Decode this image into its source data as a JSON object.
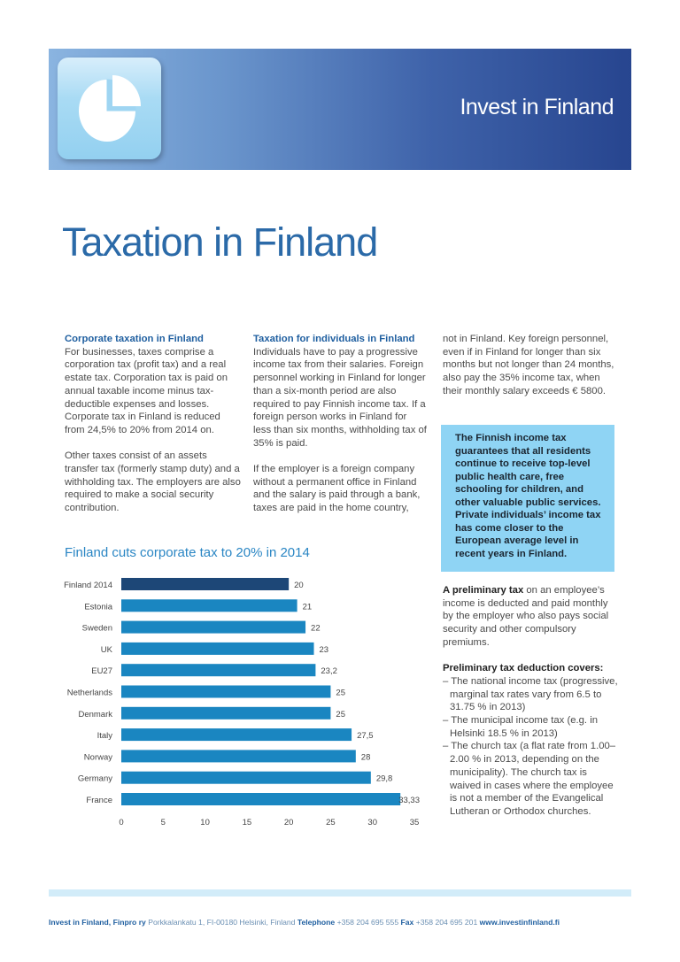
{
  "header": {
    "brand": "Invest in Finland",
    "icon": "pie-chart-icon"
  },
  "title": "Taxation in Finland",
  "col1": {
    "heading": "Corporate taxation in Finland",
    "p1": "For businesses, taxes comprise a corporation tax (profit tax) and a real estate tax. Corporation tax is paid on annual taxable income minus tax-deductible expenses and losses. Corporate tax in Finland is reduced from 24,5% to 20% from 2014 on.",
    "p2": "Other taxes consist of an assets transfer tax (formerly stamp duty) and a withholding tax. The employers are also required to make a social security contribution."
  },
  "col2": {
    "heading": "Taxation for individuals in Finland",
    "p1": "Individuals have to pay a progressive income tax from their salaries. Foreign personnel working in Finland for longer than a six-month period are also required to pay Finnish income tax.  If a foreign person works in Finland for less than six months, withholding tax of 35% is paid.",
    "p2": "If the employer is a foreign company without a permanent office in Finland and the salary is paid through a bank, taxes are paid in the home country,"
  },
  "col3": {
    "p1": "not in Finland. Key foreign personnel, even if in Finland for longer than six months but not longer than 24 months, also pay the 35% income tax, when their monthly salary exceeds € 5800.",
    "highlight": "The Finnish income tax guarantees that all residents continue to receive top-level public health care, free schooling for children, and other valuable public services. Private individuals’ income tax has come closer to the European average level in recent years in Finland.",
    "prelim_bold": "A preliminary tax",
    "prelim_rest": " on an employee’s income is deducted and paid monthly by the employer who also pays social security and other compulsory premiums.",
    "covers_heading": "Preliminary tax deduction covers:",
    "covers": [
      "– The national income tax (progressive, marginal tax rates vary from 6.5 to 31.75 % in 2013)",
      "– The municipal income tax (e.g. in Helsinki 18.5 % in 2013)",
      "– The church tax (a flat rate from 1.00–2.00 % in 2013, depending on the municipality). The church tax is waived in cases where the employee is not a member of the Evangelical Lutheran or Orthodox churches."
    ]
  },
  "chart_data": {
    "type": "bar",
    "orientation": "horizontal",
    "title": "Finland cuts corporate tax to 20% in 2014",
    "categories": [
      "Finland 2014",
      "Estonia",
      "Sweden",
      "UK",
      "EU27",
      "Netherlands",
      "Denmark",
      "Italy",
      "Norway",
      "Germany",
      "France"
    ],
    "values": [
      20,
      21,
      22,
      23,
      23.2,
      25,
      25,
      27.5,
      28,
      29.8,
      33.33
    ],
    "value_labels": [
      "20",
      "21",
      "22",
      "23",
      "23,2",
      "25",
      "25",
      "27,5",
      "28",
      "29,8",
      "33,33"
    ],
    "xlim": [
      0,
      35
    ],
    "xticks": [
      "0",
      "5",
      "10",
      "15",
      "20",
      "25",
      "30",
      "35"
    ],
    "colors": {
      "highlight": "#1d4777",
      "default": "#1a86c1"
    },
    "grid": false
  },
  "footer": {
    "org": "Invest in Finland, Finpro ry",
    "address": " Porkkalankatu 1, FI-00180 Helsinki, Finland ",
    "tel_label": "Telephone",
    "tel": " +358 204 695 555 ",
    "fax_label": "Fax",
    "fax": " +358 204 695 201 ",
    "web": "www.investinfinland.fi"
  }
}
